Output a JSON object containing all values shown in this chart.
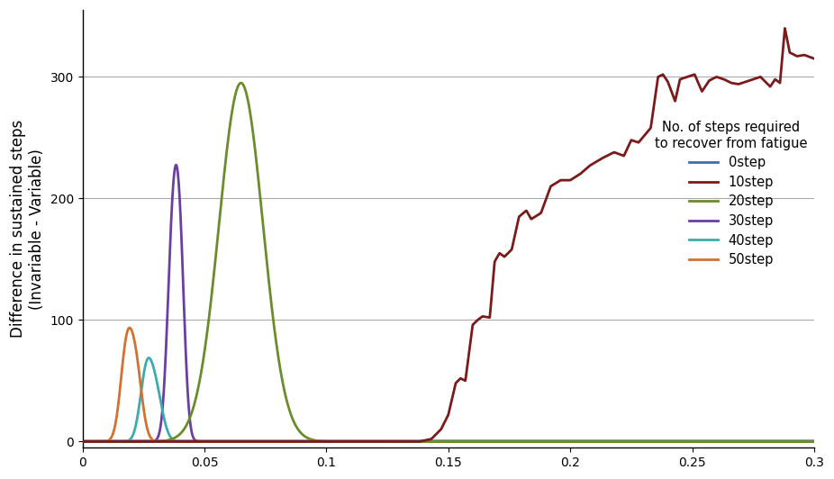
{
  "title": "",
  "xlabel": "",
  "ylabel": "Difference in sustained steps\n(Invariable - Variable)",
  "xlim": [
    0,
    0.3
  ],
  "ylim": [
    -5,
    355
  ],
  "yticks": [
    0,
    100,
    200,
    300
  ],
  "xticks": [
    0,
    0.05,
    0.1,
    0.15,
    0.2,
    0.25,
    0.3
  ],
  "legend_title": "No. of steps required\nto recover from fatigue",
  "legend_entries": [
    "0step",
    "10step",
    "20step",
    "30step",
    "40step",
    "50step"
  ],
  "colors": {
    "0step": "#3b6fad",
    "10step": "#7b1a1a",
    "20step": "#6b8c2a",
    "30step": "#6b3fa0",
    "40step": "#3aacac",
    "50step": "#d47030"
  },
  "background_color": "#ffffff",
  "grid_color": "#aaaaaa"
}
